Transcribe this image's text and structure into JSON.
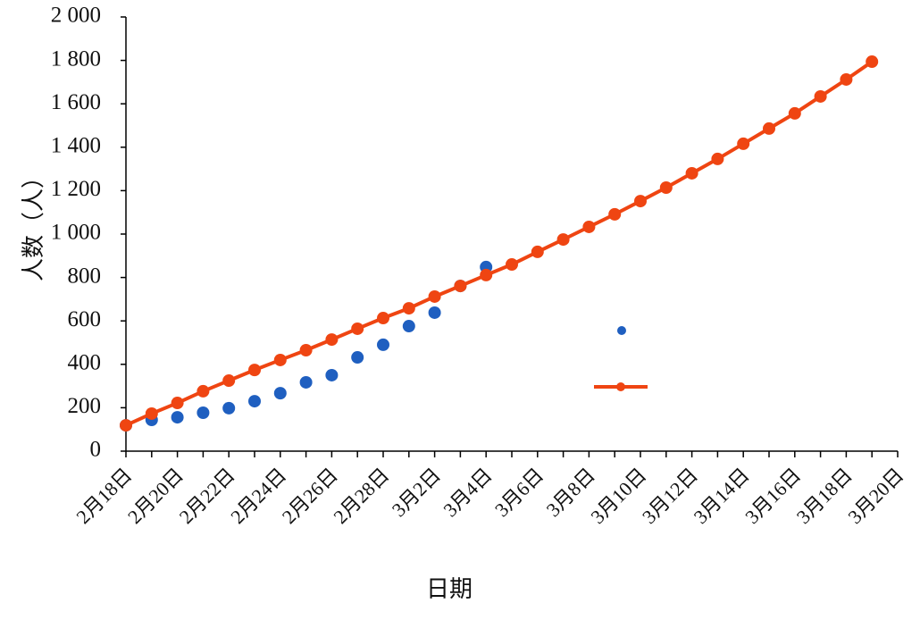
{
  "chart_data": {
    "type": "line",
    "y_label": "人数（人）",
    "x_label": "日期",
    "categories": [
      "2月18日",
      null,
      "2月20日",
      null,
      "2月22日",
      null,
      "2月24日",
      null,
      "2月26日",
      null,
      "2月28日",
      null,
      "3月2日",
      null,
      "3月4日",
      null,
      "3月6日",
      null,
      "3月8日",
      null,
      "3月10日",
      null,
      "3月12日",
      null,
      "3月14日",
      null,
      "3月16日",
      null,
      "3月18日",
      null,
      "3月20日"
    ],
    "series": [
      {
        "color": "#1f5fc0",
        "style": "markers",
        "values": [
          119,
          144,
          156,
          177,
          198,
          230,
          267,
          317,
          350,
          432,
          490,
          576,
          638,
          761,
          848,
          null,
          null,
          null,
          null,
          null,
          null,
          null,
          null,
          null,
          null,
          null,
          null,
          null,
          null,
          null,
          null
        ]
      },
      {
        "color": "#ef4512",
        "style": "line-markers",
        "values": [
          119,
          173,
          222,
          276,
          325,
          374,
          420,
          465,
          514,
          564,
          613,
          658,
          712,
          761,
          811,
          860,
          918,
          975,
          1033,
          1091,
          1152,
          1214,
          1280,
          1346,
          1416,
          1486,
          1556,
          1634,
          1712,
          1794,
          null
        ]
      }
    ],
    "ylim": [
      0,
      2000
    ],
    "yticks": [
      0,
      200,
      400,
      600,
      800,
      {
        "value": 1000,
        "label": "1 000"
      },
      {
        "value": 1200,
        "label": "1 200"
      },
      {
        "value": 1400,
        "label": "1 400"
      },
      {
        "value": 1600,
        "label": "1 600"
      },
      {
        "value": 1800,
        "label": "1 800"
      },
      {
        "value": 2000,
        "label": "2 000"
      }
    ],
    "grid": false
  }
}
